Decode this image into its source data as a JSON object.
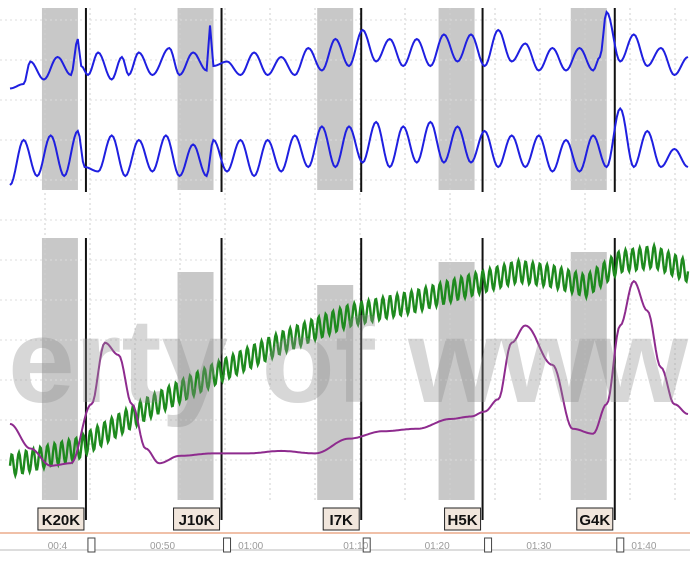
{
  "chart_data": {
    "type": "line",
    "title": "",
    "xlabel": "",
    "ylabel": "",
    "grid": true,
    "watermark": "erty of www.",
    "time_ticks": [
      "00:4",
      "00:50",
      "01:00",
      "01:10",
      "01:20",
      "01:30",
      "01:40"
    ],
    "markers": [
      {
        "label": "K20K",
        "t": 0.112
      },
      {
        "label": "J10K",
        "t": 0.312
      },
      {
        "label": "I7K",
        "t": 0.518
      },
      {
        "label": "H5K",
        "t": 0.697
      },
      {
        "label": "G4K",
        "t": 0.892
      }
    ],
    "panels": [
      {
        "name": "pulse",
        "series": [
          {
            "color": "#1f1fe0",
            "t": [
              0,
              0.02,
              0.03,
              0.05,
              0.07,
              0.09,
              0.1,
              0.105,
              0.115,
              0.13,
              0.15,
              0.165,
              0.175,
              0.19,
              0.21,
              0.235,
              0.25,
              0.27,
              0.29,
              0.295,
              0.3,
              0.32,
              0.34,
              0.36,
              0.38,
              0.4,
              0.42,
              0.44,
              0.46,
              0.48,
              0.5,
              0.52,
              0.54,
              0.56,
              0.58,
              0.6,
              0.62,
              0.64,
              0.66,
              0.68,
              0.7,
              0.72,
              0.74,
              0.76,
              0.78,
              0.8,
              0.82,
              0.84,
              0.86,
              0.87,
              0.88,
              0.9,
              0.92,
              0.94,
              0.96,
              0.98,
              1.0
            ],
            "v": [
              0.15,
              0.2,
              0.45,
              0.25,
              0.5,
              0.3,
              0.7,
              0.4,
              0.3,
              0.55,
              0.25,
              0.5,
              0.3,
              0.55,
              0.3,
              0.6,
              0.3,
              0.55,
              0.35,
              0.85,
              0.4,
              0.45,
              0.3,
              0.55,
              0.3,
              0.5,
              0.3,
              0.6,
              0.35,
              0.7,
              0.4,
              0.8,
              0.45,
              0.7,
              0.4,
              0.7,
              0.4,
              0.75,
              0.45,
              0.75,
              0.4,
              0.8,
              0.45,
              0.65,
              0.35,
              0.6,
              0.35,
              0.6,
              0.35,
              0.5,
              1.0,
              0.45,
              0.75,
              0.4,
              0.6,
              0.3,
              0.5
            ]
          },
          {
            "color": "#1f1fe0",
            "t": [
              0,
              0.02,
              0.04,
              0.06,
              0.08,
              0.1,
              0.11,
              0.13,
              0.15,
              0.17,
              0.19,
              0.21,
              0.23,
              0.25,
              0.27,
              0.29,
              0.3,
              0.32,
              0.34,
              0.36,
              0.38,
              0.4,
              0.42,
              0.44,
              0.46,
              0.48,
              0.5,
              0.52,
              0.54,
              0.56,
              0.58,
              0.6,
              0.62,
              0.64,
              0.66,
              0.68,
              0.7,
              0.72,
              0.74,
              0.76,
              0.78,
              0.8,
              0.82,
              0.84,
              0.86,
              0.88,
              0.9,
              0.92,
              0.94,
              0.96,
              0.98,
              1.0
            ],
            "v": [
              0.1,
              0.6,
              0.2,
              0.65,
              0.2,
              0.7,
              0.3,
              0.25,
              0.65,
              0.2,
              0.6,
              0.25,
              0.65,
              0.2,
              0.55,
              0.2,
              0.6,
              0.25,
              0.6,
              0.2,
              0.6,
              0.25,
              0.65,
              0.3,
              0.75,
              0.3,
              0.75,
              0.35,
              0.8,
              0.3,
              0.75,
              0.35,
              0.8,
              0.35,
              0.75,
              0.35,
              0.7,
              0.3,
              0.65,
              0.3,
              0.65,
              0.25,
              0.6,
              0.25,
              0.65,
              0.3,
              0.95,
              0.3,
              0.7,
              0.3,
              0.5,
              0.3
            ]
          }
        ]
      },
      {
        "name": "trend",
        "series": [
          {
            "color": "#1e8a1e",
            "oscillation": 0.045,
            "cycles": 95,
            "t": [
              0,
              0.1,
              0.2,
              0.3,
              0.4,
              0.5,
              0.6,
              0.7,
              0.75,
              0.8,
              0.85,
              0.9,
              0.95,
              1.0
            ],
            "v": [
              0.05,
              0.12,
              0.28,
              0.42,
              0.55,
              0.66,
              0.72,
              0.8,
              0.84,
              0.82,
              0.78,
              0.88,
              0.9,
              0.84
            ]
          },
          {
            "color": "#8e2b8e",
            "t": [
              0,
              0.03,
              0.06,
              0.09,
              0.12,
              0.14,
              0.16,
              0.18,
              0.2,
              0.22,
              0.25,
              0.3,
              0.35,
              0.4,
              0.45,
              0.5,
              0.55,
              0.6,
              0.65,
              0.68,
              0.7,
              0.72,
              0.74,
              0.76,
              0.8,
              0.83,
              0.86,
              0.88,
              0.9,
              0.92,
              0.94,
              0.96,
              0.98,
              1.0
            ],
            "v": [
              0.22,
              0.12,
              0.05,
              0.06,
              0.3,
              0.55,
              0.5,
              0.3,
              0.12,
              0.06,
              0.09,
              0.1,
              0.1,
              0.11,
              0.1,
              0.16,
              0.19,
              0.2,
              0.24,
              0.25,
              0.27,
              0.32,
              0.55,
              0.62,
              0.46,
              0.2,
              0.18,
              0.3,
              0.62,
              0.8,
              0.68,
              0.45,
              0.3,
              0.26
            ]
          }
        ]
      }
    ]
  }
}
